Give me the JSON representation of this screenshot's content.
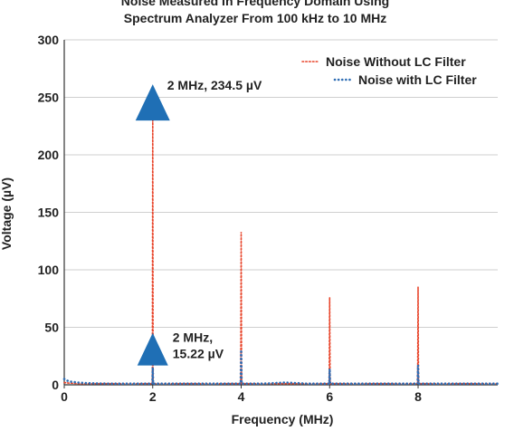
{
  "chart_data": {
    "type": "line",
    "title": [
      "Noise Measured In Frequency Domain Using",
      "Spectrum Analyzer From 100 kHz to 10 MHz"
    ],
    "xlabel": "Frequency (MHz)",
    "ylabel": "Voltage (µV)",
    "xlim": [
      0,
      9.8
    ],
    "ylim": [
      0,
      300
    ],
    "xticks": [
      "0",
      "2",
      "4",
      "6",
      "8"
    ],
    "yticks": [
      "0",
      "50",
      "100",
      "150",
      "200",
      "250",
      "300"
    ],
    "grid": "horizontal",
    "legend_position": "top-right",
    "series": [
      {
        "name": "Noise Without LC Filter",
        "color": "#E8442A",
        "style": "dotted",
        "x": [
          0,
          0.1,
          0.3,
          1,
          1.99,
          2,
          2.01,
          3,
          3.99,
          4,
          4.01,
          5,
          5.99,
          6,
          6.01,
          7,
          7.99,
          8,
          8.01,
          9,
          9.8
        ],
        "y": [
          2,
          1.5,
          1,
          1,
          1,
          234.5,
          1,
          1,
          1,
          133,
          1,
          1,
          1,
          76,
          1,
          1,
          1,
          85,
          1,
          1,
          1
        ]
      },
      {
        "name": "Noise with LC Filter",
        "color": "#2E6DB4",
        "style": "dotted",
        "x": [
          0,
          0.05,
          0.1,
          0.2,
          0.3,
          0.5,
          1,
          1.5,
          1.99,
          2,
          2.01,
          2.5,
          3,
          3.5,
          3.99,
          4,
          4.01,
          4.5,
          5,
          5.5,
          5.99,
          6,
          6.01,
          6.5,
          7,
          7.5,
          7.99,
          8,
          8.01,
          8.5,
          9,
          9.5,
          9.8
        ],
        "y": [
          5,
          4,
          3,
          2.5,
          2,
          1.5,
          1,
          1,
          1,
          15.22,
          1,
          1,
          1,
          1,
          1,
          29,
          1,
          1,
          2,
          1,
          1,
          14,
          1,
          1,
          1,
          1,
          1,
          17,
          1,
          1,
          1,
          1,
          1
        ]
      }
    ],
    "annotations": [
      {
        "label": "2 MHz, 234.5 µV",
        "x": 2,
        "y": 234.5
      },
      {
        "label": "2 MHz,\n15.22 µV",
        "x": 2,
        "y": 15.22
      }
    ]
  },
  "colors": {
    "marker": "#1F6FB5",
    "grid": "#cfcfcf",
    "axis": "#333333"
  }
}
